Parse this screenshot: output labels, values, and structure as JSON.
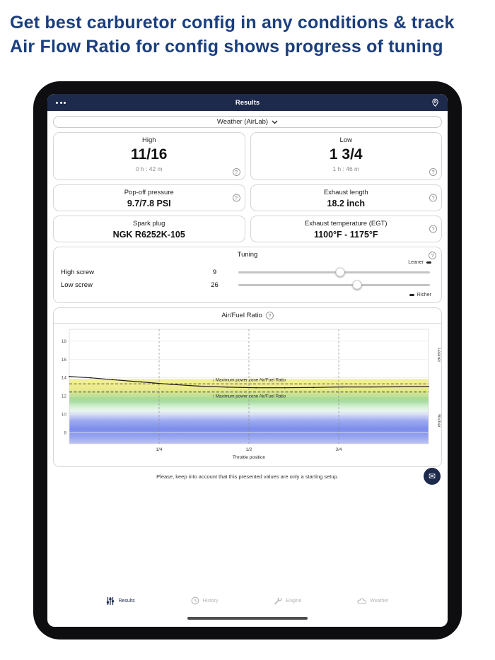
{
  "headline": {
    "line1": "Get best carburetor config in any conditions & track",
    "line2": "Air Flow Ratio for config shows progress of tuning"
  },
  "icons": {
    "help": "?",
    "mail": "✉"
  },
  "colors": {
    "accent_navy": "#1e2a4c",
    "headline_blue": "#1b3f7e",
    "inactive_gray": "#b5b5b5"
  },
  "app": {
    "header": {
      "title": "Results"
    },
    "weather_selector": {
      "label": "Weather (AirLab)"
    },
    "cards": {
      "high": {
        "title": "High",
        "value": "11/16",
        "time": "0 h : 42 m"
      },
      "low": {
        "title": "Low",
        "value": "1 3/4",
        "time": "1 h : 46 m"
      },
      "popoff": {
        "title": "Pop-off pressure",
        "value": "9.7/7.8 PSI"
      },
      "exhaust_length": {
        "title": "Exhaust length",
        "value": "18.2 inch"
      },
      "spark_plug": {
        "title": "Spark plug",
        "value": "NGK R6252K-105"
      },
      "egt": {
        "title": "Exhaust temperature (EGT)",
        "value": "1100°F - 1175°F"
      }
    },
    "tuning": {
      "title": "Tuning",
      "leaner_label": "Leaner",
      "richer_label": "Richer",
      "sliders": [
        {
          "label": "High screw",
          "value": "9",
          "percent": 53
        },
        {
          "label": "Low screw",
          "value": "26",
          "percent": 62
        }
      ]
    },
    "note": "Please, keep into account that this presented values are only a starting setup.",
    "tabbar": [
      {
        "label": "Results",
        "icon": "sliders-icon",
        "active": true
      },
      {
        "label": "History",
        "icon": "clock-icon",
        "active": false
      },
      {
        "label": "Engine",
        "icon": "wrench-icon",
        "active": false
      },
      {
        "label": "Weather",
        "icon": "cloud-icon",
        "active": false
      }
    ]
  },
  "chart_data": {
    "type": "line",
    "title": "Air/Fuel Ratio",
    "xlabel": "Throttle position",
    "x_ticks": [
      "1/4",
      "1/2",
      "3/4"
    ],
    "x_tick_positions": [
      0.25,
      0.5,
      0.75
    ],
    "y_ticks": [
      18,
      16,
      14,
      12,
      10,
      8
    ],
    "ylim": [
      6.8,
      19.3
    ],
    "grid": true,
    "right_labels": {
      "top": "Leaner",
      "bottom": "Richer"
    },
    "series": [
      {
        "name": "Air/Fuel Ratio",
        "x": [
          0,
          0.06,
          0.12,
          0.2,
          0.28,
          0.36,
          0.44,
          0.52,
          0.6,
          0.68,
          0.76,
          0.84,
          0.92,
          1
        ],
        "y": [
          14.15,
          14.0,
          13.8,
          13.55,
          13.3,
          13.1,
          12.98,
          12.92,
          12.92,
          12.95,
          13.0,
          13.0,
          13.02,
          13.05
        ]
      }
    ],
    "reference_lines": [
      13.35,
      12.45
    ],
    "annotations": [
      {
        "text": "↓ Maximum power zone Air/Fuel Ratio",
        "y": 13.78
      },
      {
        "text": "↑ Maximum power zone Air/Fuel Ratio",
        "y": 12.02
      }
    ],
    "band": {
      "top_value": 13.9,
      "stops": [
        {
          "v": 13.9,
          "color": "#f2ef9a",
          "opacity": 0.95
        },
        {
          "v": 13.0,
          "color": "#eeeb86",
          "opacity": 0.95
        },
        {
          "v": 12.4,
          "color": "#d9e68a",
          "opacity": 0.95
        },
        {
          "v": 11.9,
          "color": "#a8da85",
          "opacity": 0.95
        },
        {
          "v": 11.4,
          "color": "#9ed89a",
          "opacity": 0.9
        },
        {
          "v": 10.9,
          "color": "#c8eec8",
          "opacity": 0.85
        },
        {
          "v": 10.4,
          "color": "#e3f3ec",
          "opacity": 0.8
        },
        {
          "v": 10.0,
          "color": "#ccd5f5",
          "opacity": 0.85
        },
        {
          "v": 9.3,
          "color": "#97a5ef",
          "opacity": 0.95
        },
        {
          "v": 8.4,
          "color": "#7b8cec",
          "opacity": 1
        },
        {
          "v": 7.6,
          "color": "#95a2ef",
          "opacity": 1
        },
        {
          "v": 6.8,
          "color": "#bcc5f4",
          "opacity": 1
        }
      ]
    }
  }
}
